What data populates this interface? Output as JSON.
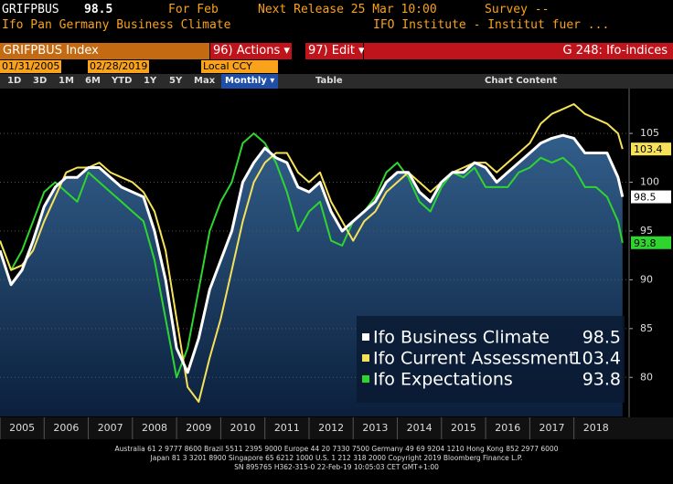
{
  "header": {
    "ticker": "GRIFPBUS",
    "last_price": "98.5",
    "period": "For Feb",
    "next_release": "Next Release 25 Mar 10:00",
    "survey": "Survey --",
    "security_name": "Ifo Pan Germany Business Climate",
    "source": "IFO Institute - Institut fuer ..."
  },
  "toolbar": {
    "security": "GRIFPBUS Index",
    "actions": "96) Actions ▾",
    "edit": "97) Edit ▾",
    "function": "G 248: Ifo-indices",
    "start_date": "01/31/2005",
    "end_date": "02/28/2019",
    "currency": "Local CCY",
    "periods": [
      "1D",
      "3D",
      "1M",
      "6M",
      "YTD",
      "1Y",
      "5Y",
      "Max"
    ],
    "frequency": "Monthly ▾",
    "table": "Table",
    "chart_content": "Chart Content"
  },
  "chart_data": {
    "type": "line",
    "grid": true,
    "legend": "bottom-right",
    "x": [
      2005,
      2005.25,
      2005.5,
      2005.75,
      2006,
      2006.25,
      2006.5,
      2006.75,
      2007,
      2007.25,
      2007.5,
      2007.75,
      2008,
      2008.25,
      2008.5,
      2008.75,
      2009,
      2009.25,
      2009.5,
      2009.75,
      2010,
      2010.25,
      2010.5,
      2010.75,
      2011,
      2011.25,
      2011.5,
      2011.75,
      2012,
      2012.25,
      2012.5,
      2012.75,
      2013,
      2013.25,
      2013.5,
      2013.75,
      2014,
      2014.25,
      2014.5,
      2014.75,
      2015,
      2015.25,
      2015.5,
      2015.75,
      2016,
      2016.25,
      2016.5,
      2016.75,
      2017,
      2017.25,
      2017.5,
      2017.75,
      2018,
      2018.25,
      2018.5,
      2018.75,
      2019,
      2019.1
    ],
    "xlim": [
      2005,
      2019.25
    ],
    "xticks": [
      {
        "value": 2005.5,
        "label": "2005"
      },
      {
        "value": 2006.5,
        "label": "2006"
      },
      {
        "value": 2007.5,
        "label": "2007"
      },
      {
        "value": 2008.5,
        "label": "2008"
      },
      {
        "value": 2009.5,
        "label": "2009"
      },
      {
        "value": 2010.5,
        "label": "2010"
      },
      {
        "value": 2011.5,
        "label": "2011"
      },
      {
        "value": 2012.5,
        "label": "2012"
      },
      {
        "value": 2013.5,
        "label": "2013"
      },
      {
        "value": 2014.5,
        "label": "2014"
      },
      {
        "value": 2015.5,
        "label": "2015"
      },
      {
        "value": 2016.5,
        "label": "2016"
      },
      {
        "value": 2017.5,
        "label": "2017"
      },
      {
        "value": 2018.5,
        "label": "2018"
      }
    ],
    "ylim": [
      76,
      109.5
    ],
    "yticks": [
      80,
      85,
      90,
      95,
      100,
      105
    ],
    "series": [
      {
        "name": "Ifo Business Climate",
        "color": "#ffffff",
        "fill": true,
        "values": [
          93,
          89.5,
          91,
          94,
          97.5,
          99.5,
          100.5,
          100.5,
          101.5,
          101.5,
          100.5,
          99.5,
          99,
          98.5,
          95,
          90,
          83,
          80.5,
          84,
          89,
          92,
          95,
          100,
          102,
          103.5,
          102.5,
          102,
          99.5,
          99,
          100,
          97,
          95,
          96,
          97,
          98,
          100,
          101,
          101,
          99,
          98,
          100,
          101,
          101,
          102,
          101.5,
          100,
          101,
          102,
          103,
          104,
          104.5,
          104.8,
          104.5,
          103,
          103,
          103,
          100.5,
          98.5
        ]
      },
      {
        "name": "Ifo Current Assessment",
        "color": "#f5e15a",
        "fill": false,
        "values": [
          94,
          91,
          91.5,
          93,
          96,
          98.5,
          101,
          101.5,
          101.5,
          102,
          101,
          100.5,
          100,
          99,
          97,
          93,
          86,
          79,
          77.5,
          82,
          86,
          91,
          96,
          100,
          102,
          103,
          103,
          101,
          100,
          101,
          98,
          96,
          94,
          96,
          97,
          99,
          100,
          101,
          100,
          99,
          100,
          101,
          101.5,
          102,
          102,
          101,
          102,
          103,
          104,
          106,
          107,
          107.5,
          108,
          107,
          106.5,
          106,
          105,
          103.4
        ]
      },
      {
        "name": "Ifo Expectations",
        "color": "#2fd52f",
        "fill": false,
        "values": [
          94,
          91,
          93,
          96,
          99,
          100,
          99,
          98,
          101,
          100,
          99,
          98,
          97,
          96,
          92,
          86,
          80,
          83,
          89,
          95,
          98,
          100,
          104,
          105,
          104,
          102,
          99,
          95,
          97,
          98,
          94,
          93.5,
          96,
          97,
          98.5,
          101,
          102,
          100.5,
          98,
          97,
          99.5,
          101,
          100.5,
          101.5,
          99.5,
          99.5,
          99.5,
          101,
          101.5,
          102.5,
          102,
          102.5,
          101.5,
          99.5,
          99.5,
          98.5,
          96,
          93.8
        ]
      }
    ]
  },
  "footer": [
    "Australia 61 2 9777 8600 Brazil 5511 2395 9000 Europe 44 20 7330 7500 Germany 49 69 9204 1210 Hong Kong 852 2977 6000",
    "Japan 81 3 3201 8900        Singapore 65 6212 1000        U.S. 1 212 318 2000        Copyright 2019 Bloomberg Finance L.P.",
    "SN 895765 H362-315-0 22-Feb-19 10:05:03 CET  GMT+1:00"
  ]
}
